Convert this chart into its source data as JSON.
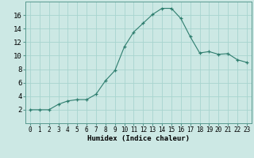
{
  "x": [
    0,
    1,
    2,
    3,
    4,
    5,
    6,
    7,
    8,
    9,
    10,
    11,
    12,
    13,
    14,
    15,
    16,
    17,
    18,
    19,
    20,
    21,
    22,
    23
  ],
  "y": [
    2,
    2,
    2,
    2.8,
    3.3,
    3.5,
    3.5,
    4.3,
    6.3,
    7.8,
    11.3,
    13.5,
    14.8,
    16.1,
    17.0,
    17.0,
    15.5,
    12.8,
    10.4,
    10.6,
    10.2,
    10.3,
    9.4,
    9.0
  ],
  "line_color": "#2e7d6e",
  "marker_color": "#2e7d6e",
  "bg_color": "#cce8e4",
  "grid_color": "#a8d4cf",
  "xlabel": "Humidex (Indice chaleur)",
  "xlim": [
    -0.5,
    23.5
  ],
  "ylim": [
    0,
    18
  ],
  "yticks": [
    2,
    4,
    6,
    8,
    10,
    12,
    14,
    16
  ],
  "xticks": [
    0,
    1,
    2,
    3,
    4,
    5,
    6,
    7,
    8,
    9,
    10,
    11,
    12,
    13,
    14,
    15,
    16,
    17,
    18,
    19,
    20,
    21,
    22,
    23
  ],
  "xlabel_fontsize": 6.5,
  "ytick_fontsize": 6.5,
  "xtick_fontsize": 5.5
}
